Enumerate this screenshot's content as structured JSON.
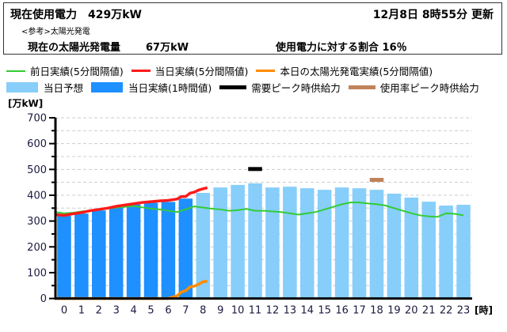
{
  "header": {
    "current_usage_label": "現在使用電力",
    "current_usage_value": "429万kW",
    "updated": "12月8日  8時55分 更新",
    "reference_label": "<参考>太陽光発電",
    "solar_label": "現在の太陽光発電量",
    "solar_value": "67万kW",
    "ratio_label": "使用電力に対する割合 16％"
  },
  "legend": {
    "row1": [
      {
        "label": "前日実績(5分間隔値)",
        "color": "#33cc33",
        "kind": "line"
      },
      {
        "label": "当日実績(5分間隔値)",
        "color": "#ff1a1a",
        "kind": "line"
      },
      {
        "label": "本日の太陽光発電実績(5分間隔値)",
        "color": "#ff8c00",
        "kind": "line"
      }
    ],
    "row2": [
      {
        "label": "当日予想",
        "color": "#87cefa",
        "kind": "box"
      },
      {
        "label": "当日実績(1時間値)",
        "color": "#1e90ff",
        "kind": "box"
      },
      {
        "label": "需要ピーク時供給力",
        "color": "#000000",
        "kind": "thick"
      },
      {
        "label": "使用率ピーク時供給力",
        "color": "#c0825a",
        "kind": "thick"
      }
    ]
  },
  "chart_data": {
    "type": "bar",
    "title": "",
    "ylabel": "[万kW]",
    "xlabel": "[時]",
    "ylim": [
      0,
      700
    ],
    "yticks": [
      0,
      100,
      200,
      300,
      400,
      500,
      600,
      700
    ],
    "categories": [
      "0",
      "1",
      "2",
      "3",
      "4",
      "5",
      "6",
      "7",
      "8",
      "9",
      "10",
      "11",
      "12",
      "13",
      "14",
      "15",
      "16",
      "17",
      "18",
      "19",
      "20",
      "21",
      "22",
      "23"
    ],
    "series": [
      {
        "name": "当日実績(1時間値)",
        "type": "bar",
        "color": "#1e90ff",
        "values": [
          320,
          329,
          341,
          353,
          365,
          371,
          374,
          387,
          null,
          null,
          null,
          null,
          null,
          null,
          null,
          null,
          null,
          null,
          null,
          null,
          null,
          null,
          null,
          null
        ]
      },
      {
        "name": "当日予想",
        "type": "bar",
        "color": "#87cefa",
        "values": [
          null,
          null,
          null,
          null,
          null,
          null,
          null,
          null,
          409,
          430,
          440,
          446,
          430,
          433,
          427,
          421,
          430,
          427,
          421,
          406,
          391,
          375,
          360,
          363
        ]
      },
      {
        "name": "前日実績(5分間隔値)",
        "type": "line",
        "color": "#33cc33",
        "x": [
          0,
          0.5,
          1,
          1.5,
          2,
          2.5,
          3,
          3.5,
          4,
          4.5,
          5,
          5.5,
          6,
          6.5,
          7,
          7.5,
          8,
          8.5,
          9,
          9.5,
          10,
          10.5,
          11,
          11.5,
          12,
          12.5,
          13,
          13.5,
          14,
          14.5,
          15,
          15.5,
          16,
          16.5,
          17,
          17.5,
          18,
          18.5,
          19,
          19.5,
          20,
          20.5,
          21,
          21.5,
          22,
          22.5,
          23,
          23.5
        ],
        "values": [
          335,
          330,
          332,
          337,
          340,
          345,
          348,
          352,
          355,
          358,
          353,
          348,
          345,
          340,
          335,
          345,
          357,
          352,
          348,
          345,
          340,
          342,
          347,
          340,
          340,
          337,
          335,
          330,
          325,
          330,
          335,
          345,
          355,
          365,
          372,
          372,
          368,
          365,
          360,
          350,
          340,
          330,
          322,
          318,
          316,
          330,
          328,
          322
        ]
      },
      {
        "name": "当日実績(5分間隔値)",
        "type": "line",
        "color": "#ff1a1a",
        "x": [
          0,
          0.5,
          1,
          1.5,
          2,
          2.5,
          3,
          3.5,
          4,
          4.5,
          5,
          5.5,
          6,
          6.5,
          7,
          7.25,
          7.5,
          7.75,
          8,
          8.25,
          8.5,
          8.75
        ],
        "values": [
          325,
          322,
          328,
          333,
          340,
          345,
          350,
          357,
          362,
          367,
          372,
          375,
          378,
          380,
          385,
          395,
          395,
          408,
          412,
          420,
          425,
          429
        ]
      },
      {
        "name": "本日の太陽光発電実績(5分間隔値)",
        "type": "line",
        "color": "#ff8c00",
        "x": [
          0,
          6.5,
          6.75,
          7,
          7.25,
          7.5,
          7.75,
          8,
          8.25,
          8.5,
          8.75
        ],
        "values": [
          0,
          0,
          5,
          10,
          25,
          30,
          45,
          48,
          55,
          65,
          67
        ]
      },
      {
        "name": "需要ピーク時供給力",
        "type": "marker",
        "color": "#000000",
        "x": 11,
        "value": 500
      },
      {
        "name": "使用率ピーク時供給力",
        "type": "marker",
        "color": "#c0825a",
        "x": 18,
        "value": 458
      }
    ],
    "grid": true,
    "legend_position": "top"
  }
}
